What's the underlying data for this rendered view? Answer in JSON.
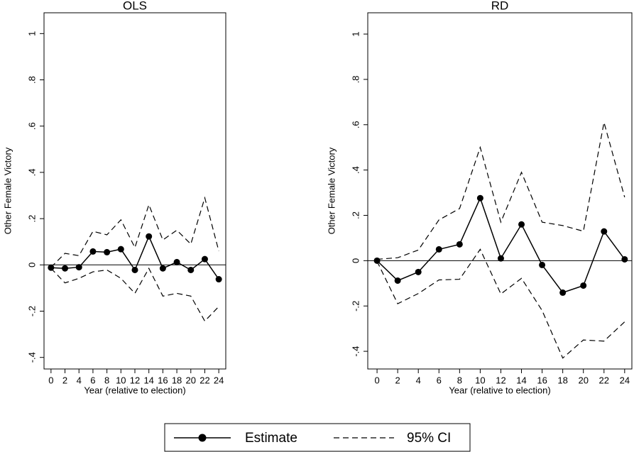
{
  "chart_data": [
    {
      "type": "line",
      "title": "OLS",
      "x_label": "Year (relative to election)",
      "y_label": "Other Female Victory",
      "x": [
        0,
        2,
        4,
        6,
        8,
        10,
        12,
        14,
        16,
        18,
        20,
        22,
        24
      ],
      "series": [
        {
          "name": "Estimate",
          "color": "#000000",
          "values": [
            -0.012,
            -0.015,
            -0.01,
            0.058,
            0.055,
            0.068,
            -0.022,
            0.123,
            -0.015,
            0.012,
            -0.022,
            0.025,
            -0.062
          ]
        },
        {
          "name": "95% CI",
          "color": "#000000",
          "upper": [
            -0.01,
            0.05,
            0.04,
            0.145,
            0.13,
            0.195,
            0.075,
            0.26,
            0.108,
            0.15,
            0.09,
            0.29,
            0.06
          ],
          "lower": [
            -0.015,
            -0.078,
            -0.058,
            -0.03,
            -0.022,
            -0.058,
            -0.123,
            -0.015,
            -0.135,
            -0.123,
            -0.135,
            -0.243,
            -0.18
          ]
        }
      ],
      "xlim": [
        -1,
        25
      ],
      "xticks": [
        0,
        2,
        4,
        6,
        8,
        10,
        12,
        14,
        16,
        18,
        20,
        22,
        24
      ],
      "ylim": [
        -0.45,
        1.09
      ],
      "yticks": [
        {
          "value": -0.4,
          "label": "-.4"
        },
        {
          "value": -0.2,
          "label": "-.2"
        },
        0,
        {
          "value": 0.2,
          "label": ".2"
        },
        {
          "value": 0.4,
          "label": ".4"
        },
        {
          "value": 0.6,
          "label": ".6"
        },
        {
          "value": 0.8,
          "label": ".8"
        },
        1
      ]
    },
    {
      "type": "line",
      "title": "RD",
      "x_label": "Year (relative to election)",
      "y_label": "Other Female Victory",
      "x": [
        0,
        2,
        4,
        6,
        8,
        10,
        12,
        14,
        16,
        18,
        20,
        22,
        24
      ],
      "series": [
        {
          "name": "Estimate",
          "color": "#000000",
          "values": [
            0,
            -0.088,
            -0.05,
            0.05,
            0.072,
            0.276,
            0.01,
            0.16,
            -0.019,
            -0.141,
            -0.11,
            0.129,
            0.006
          ]
        },
        {
          "name": "95% CI",
          "color": "#000000",
          "upper": [
            0.006,
            0.013,
            0.047,
            0.18,
            0.23,
            0.5,
            0.17,
            0.39,
            0.17,
            0.155,
            0.13,
            0.61,
            0.28
          ],
          "lower": [
            -0.003,
            -0.19,
            -0.145,
            -0.085,
            -0.082,
            0.05,
            -0.147,
            -0.078,
            -0.22,
            -0.43,
            -0.35,
            -0.355,
            -0.27
          ]
        }
      ],
      "xlim": [
        -0.9,
        24.7
      ],
      "xticks": [
        0,
        2,
        4,
        6,
        8,
        10,
        12,
        14,
        16,
        18,
        20,
        22,
        24
      ],
      "ylim": [
        -0.478,
        1.094
      ],
      "yticks": [
        {
          "value": -0.4,
          "label": "-.4"
        },
        {
          "value": -0.2,
          "label": "-.2"
        },
        0,
        {
          "value": 0.2,
          "label": ".2"
        },
        {
          "value": 0.4,
          "label": ".4"
        },
        {
          "value": 0.6,
          "label": ".6"
        },
        {
          "value": 0.8,
          "label": ".8"
        },
        1
      ]
    }
  ]
}
